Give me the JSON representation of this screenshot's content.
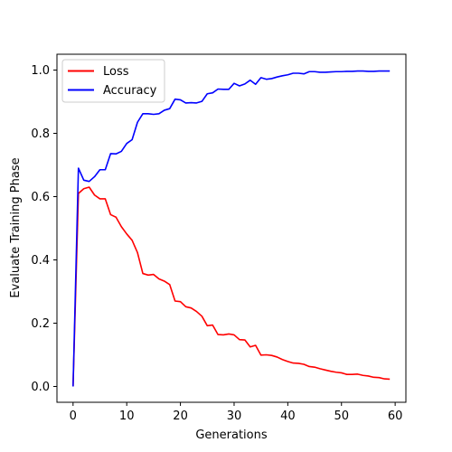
{
  "chart_data": {
    "type": "line",
    "xlabel": "Generations",
    "ylabel": "Evaluate Training Phase",
    "xlim": [
      -3,
      62
    ],
    "ylim": [
      -0.05,
      1.05
    ],
    "xticks": [
      0,
      10,
      20,
      30,
      40,
      50,
      60
    ],
    "yticks": [
      0.0,
      0.2,
      0.4,
      0.6,
      0.8,
      1.0
    ],
    "xtick_labels": [
      "0",
      "10",
      "20",
      "30",
      "40",
      "50",
      "60"
    ],
    "ytick_labels": [
      "0.0",
      "0.2",
      "0.4",
      "0.6",
      "0.8",
      "1.0"
    ],
    "grid": false,
    "legend_position": "top-left",
    "x": [
      0,
      1,
      2,
      3,
      4,
      5,
      6,
      7,
      8,
      9,
      10,
      11,
      12,
      13,
      14,
      15,
      16,
      17,
      18,
      19,
      20,
      21,
      22,
      23,
      24,
      25,
      26,
      27,
      28,
      29,
      30,
      31,
      32,
      33,
      34,
      35,
      36,
      37,
      38,
      39,
      40,
      41,
      42,
      43,
      44,
      45,
      46,
      47,
      48,
      49,
      50,
      51,
      52,
      53,
      54,
      55,
      56,
      57,
      58,
      59
    ],
    "series": [
      {
        "name": "Loss",
        "color": "#ff0000",
        "values": [
          0.0,
          0.61,
          0.625,
          0.63,
          0.605,
          0.593,
          0.593,
          0.543,
          0.535,
          0.505,
          0.482,
          0.462,
          0.423,
          0.357,
          0.352,
          0.354,
          0.34,
          0.333,
          0.322,
          0.27,
          0.268,
          0.252,
          0.248,
          0.237,
          0.222,
          0.192,
          0.194,
          0.164,
          0.163,
          0.166,
          0.163,
          0.148,
          0.147,
          0.125,
          0.13,
          0.099,
          0.1,
          0.098,
          0.093,
          0.085,
          0.079,
          0.074,
          0.073,
          0.07,
          0.063,
          0.061,
          0.056,
          0.052,
          0.048,
          0.045,
          0.043,
          0.038,
          0.038,
          0.039,
          0.035,
          0.033,
          0.029,
          0.028,
          0.024,
          0.023
        ]
      },
      {
        "name": "Accuracy",
        "color": "#0000ff",
        "values": [
          0.0,
          0.69,
          0.652,
          0.648,
          0.663,
          0.685,
          0.685,
          0.736,
          0.735,
          0.743,
          0.768,
          0.78,
          0.835,
          0.862,
          0.862,
          0.86,
          0.862,
          0.873,
          0.878,
          0.908,
          0.906,
          0.896,
          0.897,
          0.896,
          0.901,
          0.925,
          0.928,
          0.94,
          0.939,
          0.939,
          0.958,
          0.95,
          0.956,
          0.968,
          0.955,
          0.976,
          0.971,
          0.973,
          0.978,
          0.982,
          0.985,
          0.99,
          0.99,
          0.988,
          0.995,
          0.995,
          0.993,
          0.993,
          0.994,
          0.995,
          0.995,
          0.996,
          0.996,
          0.997,
          0.997,
          0.996,
          0.996,
          0.997,
          0.997,
          0.997
        ]
      }
    ]
  }
}
